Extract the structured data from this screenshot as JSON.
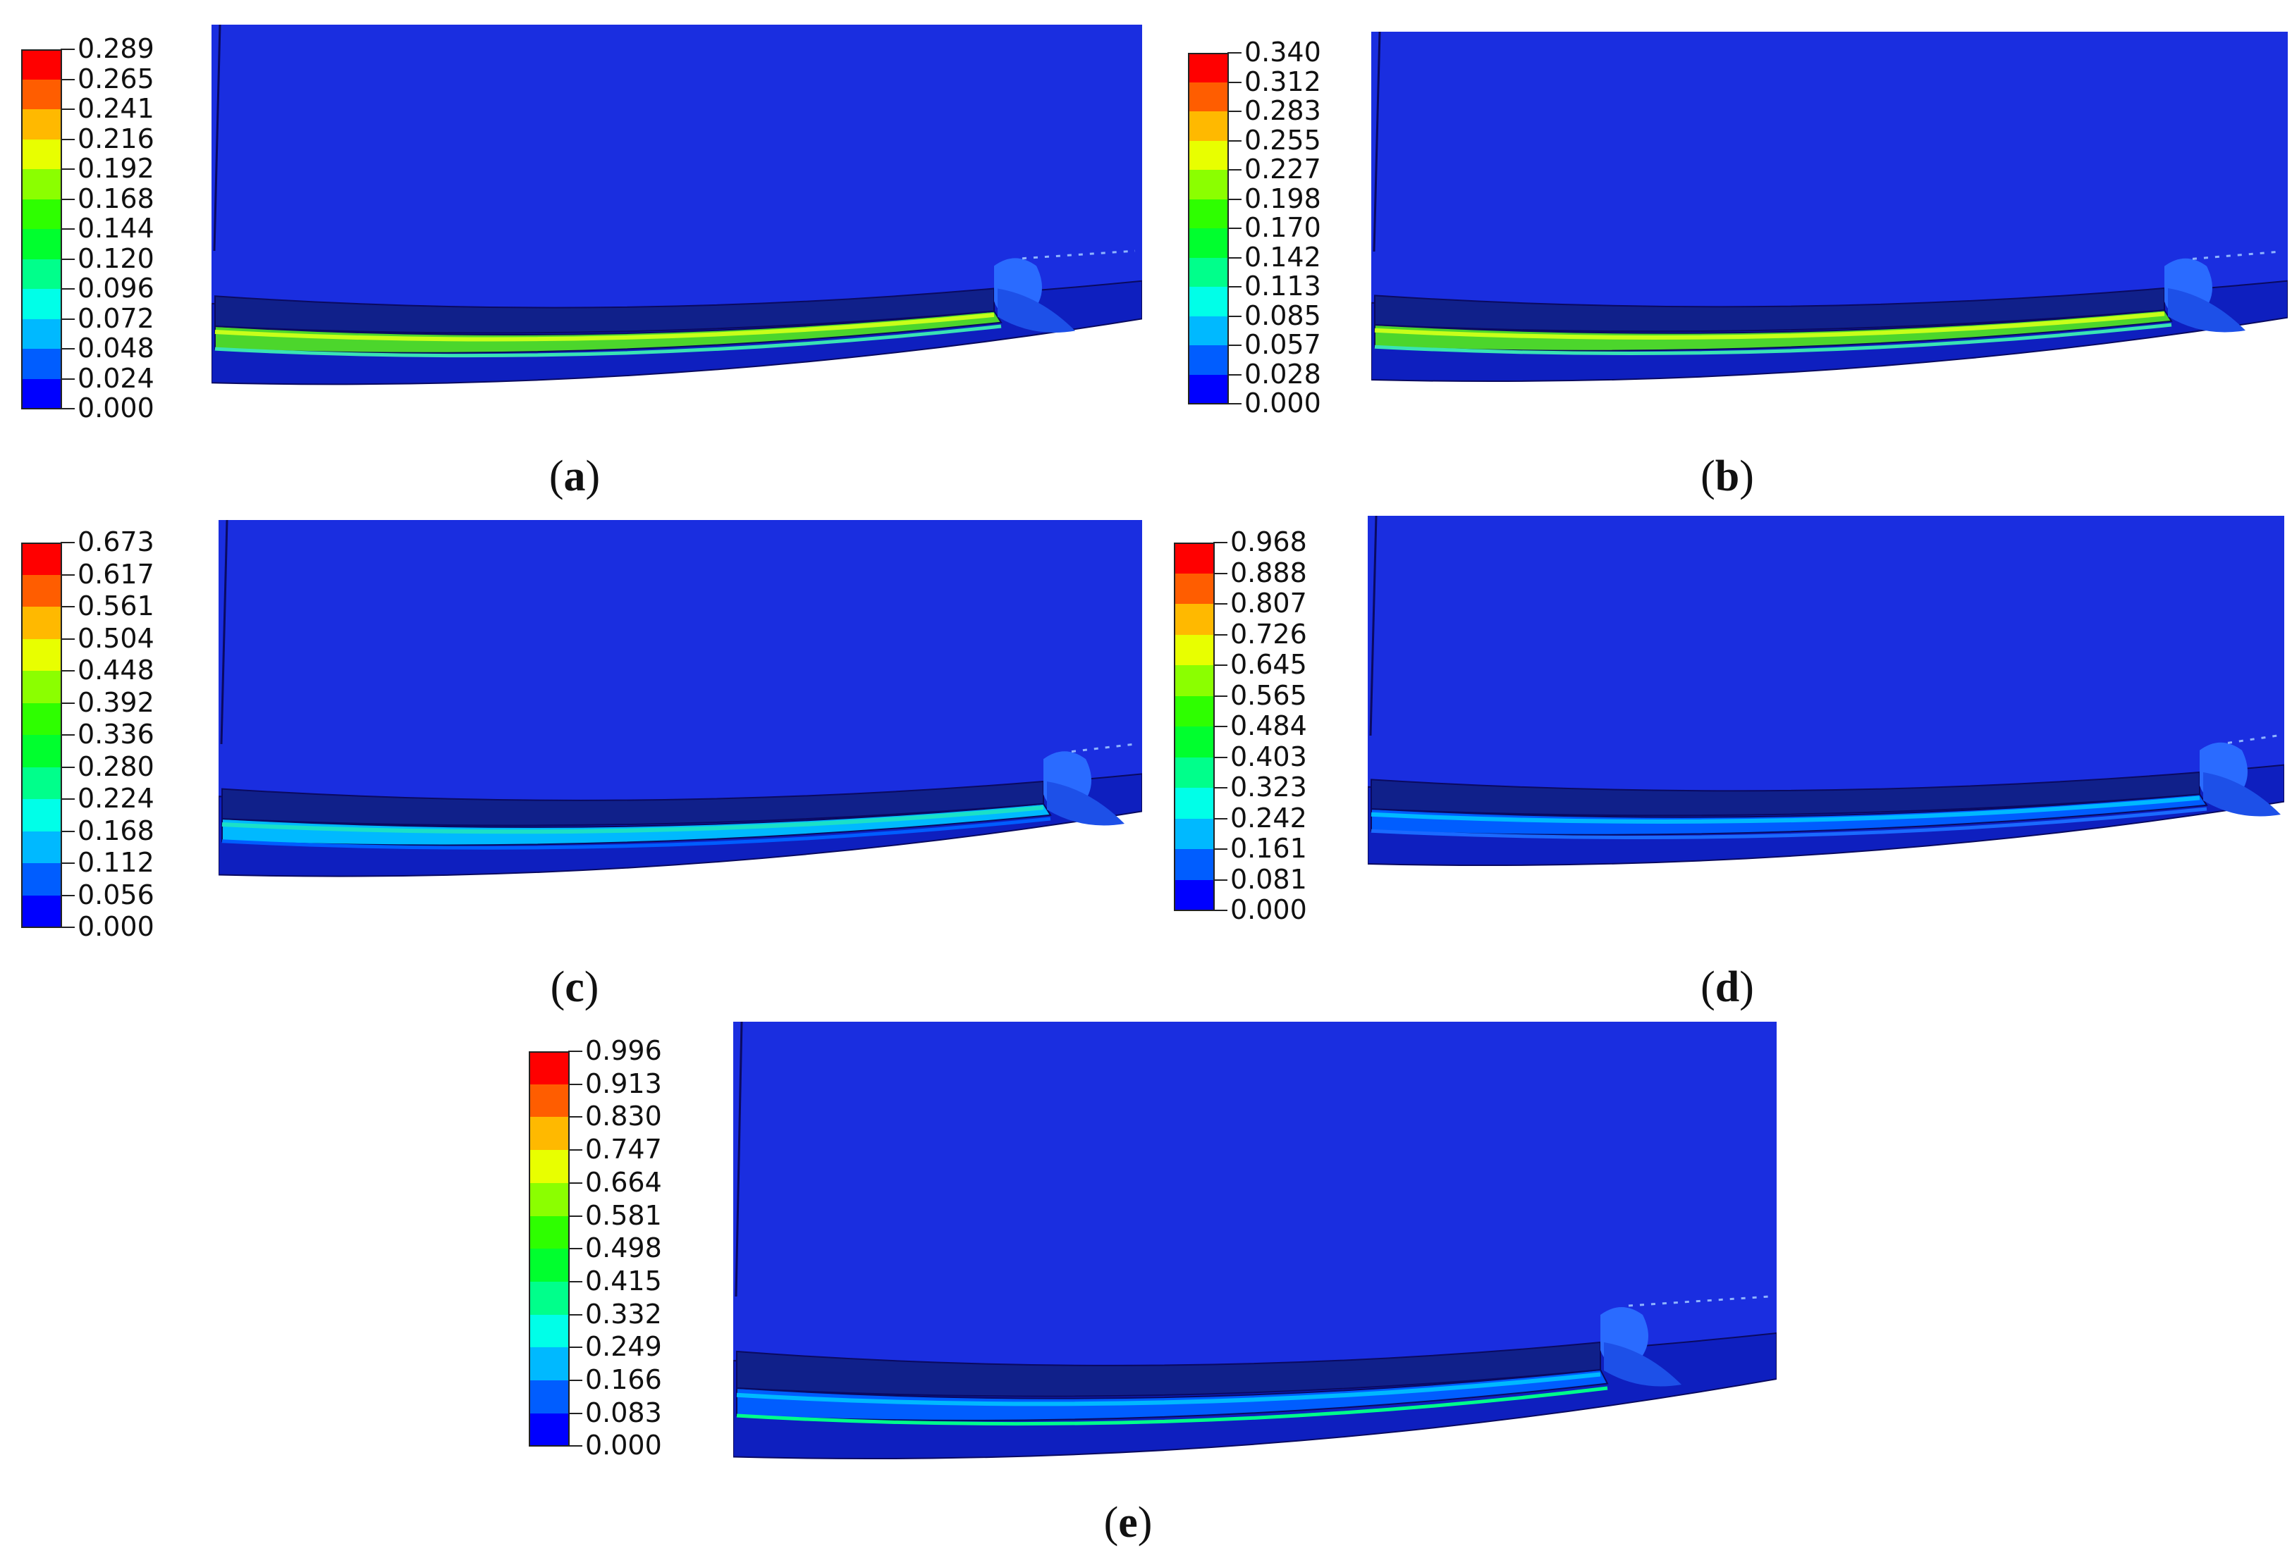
{
  "colors": {
    "scale": [
      "#0000ff",
      "#005dff",
      "#00b9ff",
      "#00ffe8",
      "#00ff8b",
      "#00ff2e",
      "#2eff00",
      "#8bff00",
      "#e8ff00",
      "#ffb900",
      "#ff5d00",
      "#ff0000"
    ],
    "background_field": "#1a2ee0",
    "deep_field": "#0e1fbf"
  },
  "panels": [
    {
      "id": "a",
      "caption_letter": "a",
      "legend_values": [
        "0.289",
        "0.265",
        "0.241",
        "0.216",
        "0.192",
        "0.168",
        "0.144",
        "0.120",
        "0.096",
        "0.072",
        "0.048",
        "0.024",
        "0.000"
      ]
    },
    {
      "id": "b",
      "caption_letter": "b",
      "legend_values": [
        "0.340",
        "0.312",
        "0.283",
        "0.255",
        "0.227",
        "0.198",
        "0.170",
        "0.142",
        "0.113",
        "0.085",
        "0.057",
        "0.028",
        "0.000"
      ]
    },
    {
      "id": "c",
      "caption_letter": "c",
      "legend_values": [
        "0.673",
        "0.617",
        "0.561",
        "0.504",
        "0.448",
        "0.392",
        "0.336",
        "0.280",
        "0.224",
        "0.168",
        "0.112",
        "0.056",
        "0.000"
      ]
    },
    {
      "id": "d",
      "caption_letter": "d",
      "legend_values": [
        "0.968",
        "0.888",
        "0.807",
        "0.726",
        "0.645",
        "0.565",
        "0.484",
        "0.403",
        "0.323",
        "0.242",
        "0.161",
        "0.081",
        "0.000"
      ]
    },
    {
      "id": "e",
      "caption_letter": "e",
      "legend_values": [
        "0.996",
        "0.913",
        "0.830",
        "0.747",
        "0.664",
        "0.581",
        "0.498",
        "0.415",
        "0.332",
        "0.249",
        "0.166",
        "0.083",
        "0.000"
      ]
    }
  ]
}
